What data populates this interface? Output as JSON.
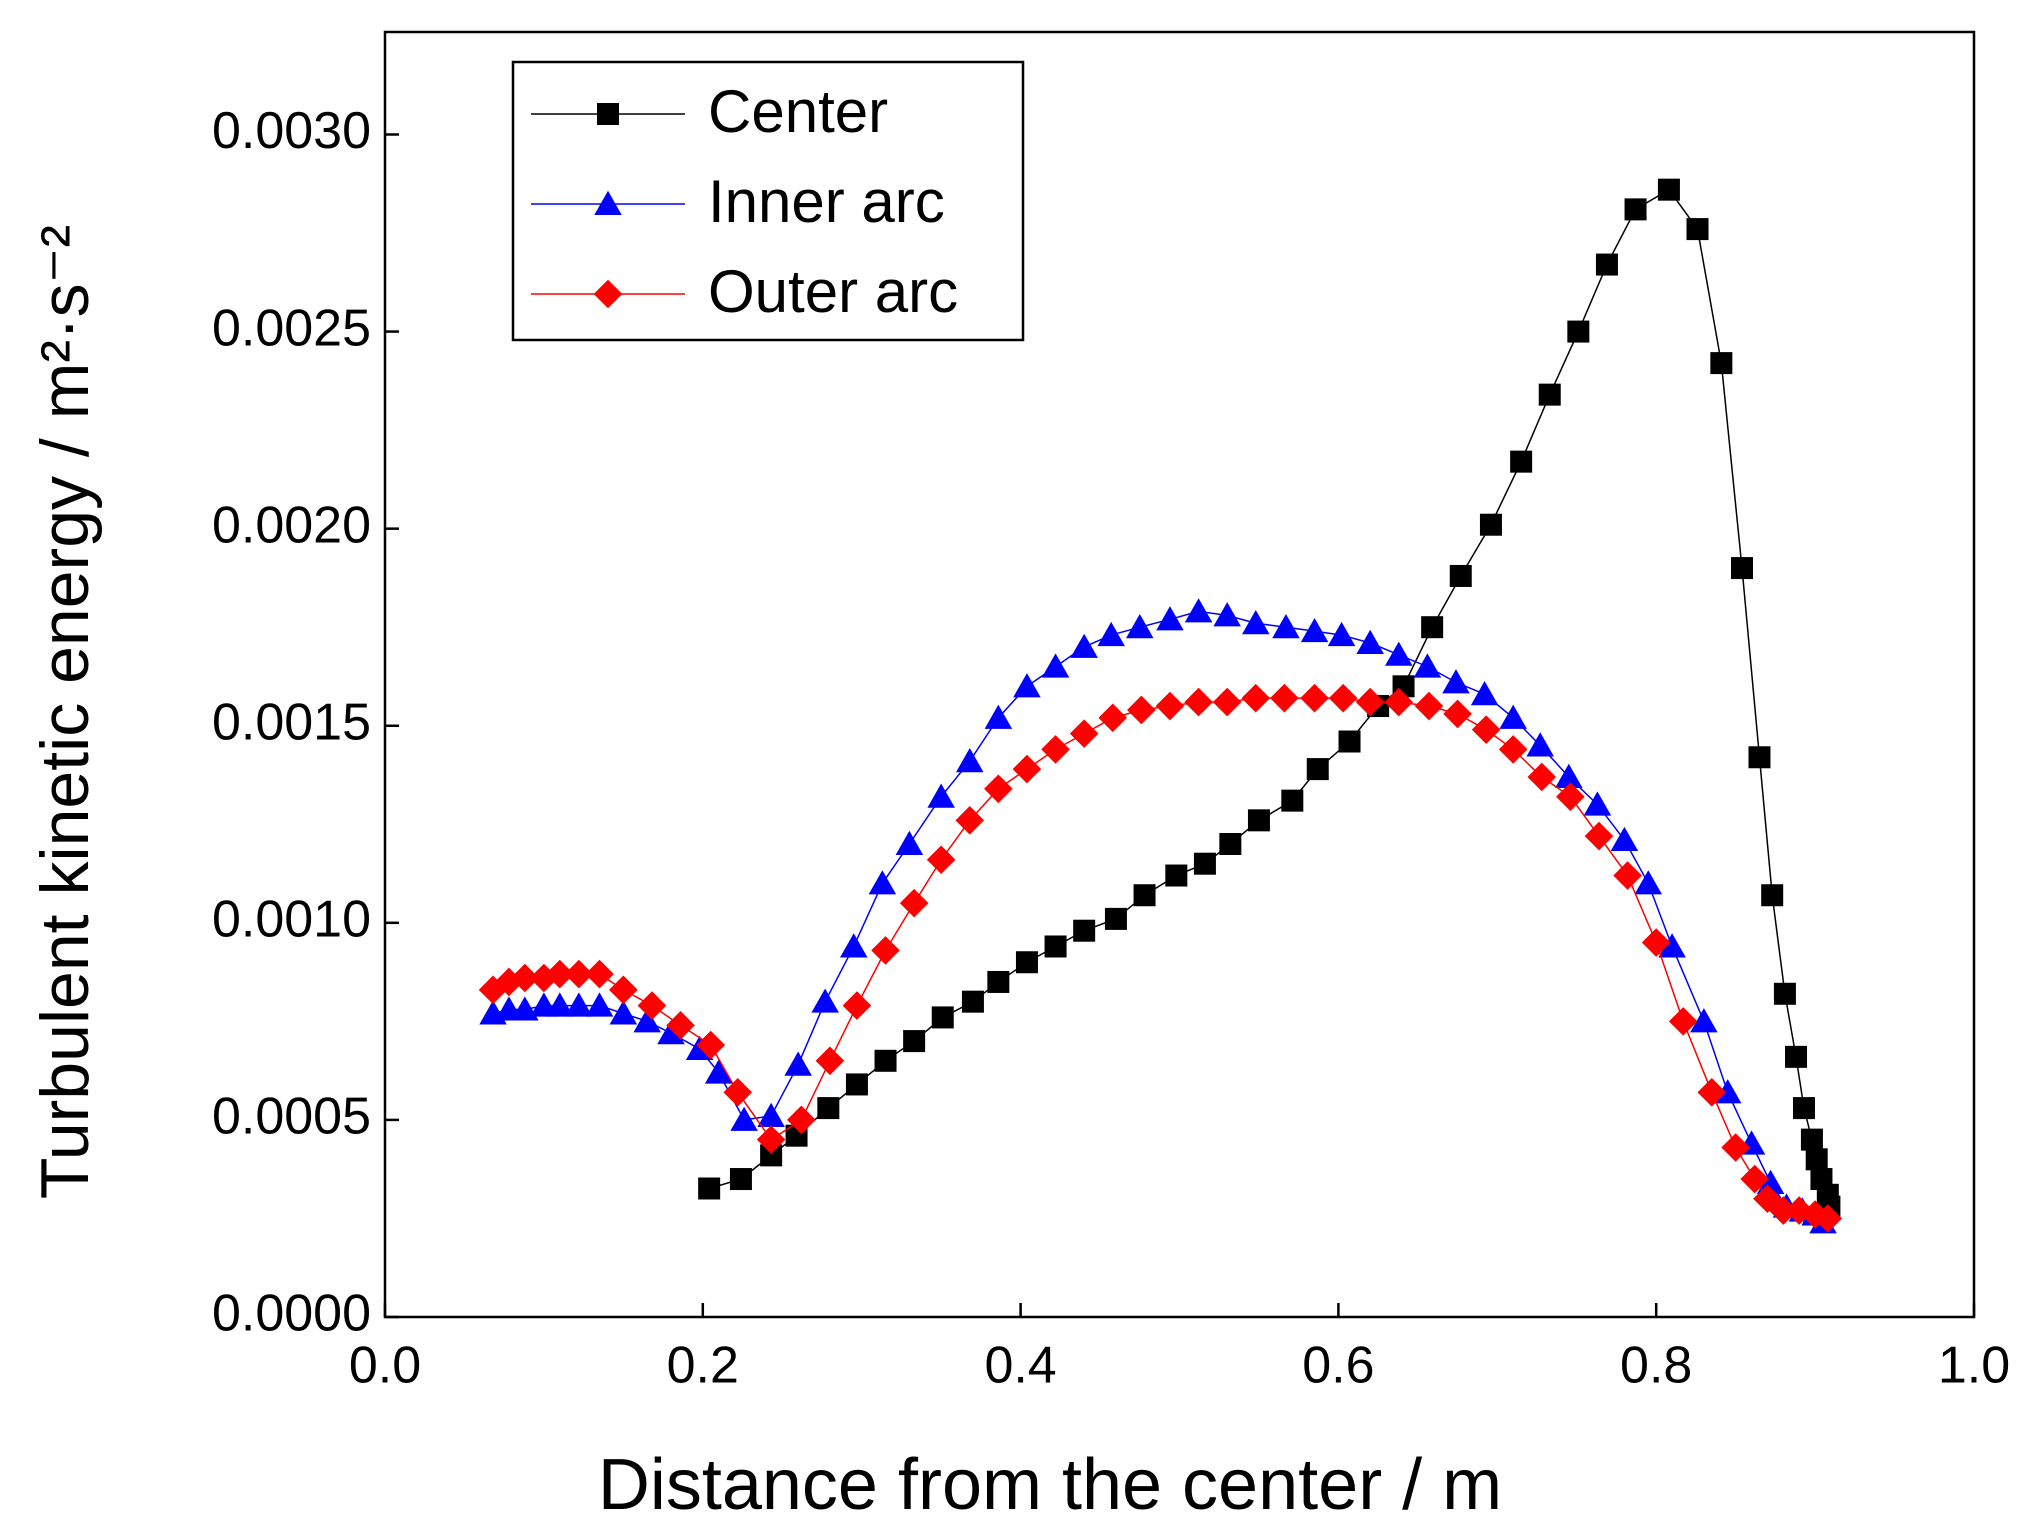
{
  "chart_data": {
    "type": "line",
    "xlabel": "Distance from the center / m",
    "ylabel": "Turbulent kinetic energy / m²·s⁻²",
    "xlim": [
      0,
      1
    ],
    "ylim": [
      0,
      0.00326
    ],
    "xticks": [
      {
        "value": 0,
        "label": "0.0"
      },
      {
        "value": 0.2,
        "label": "0.2"
      },
      {
        "value": 0.4,
        "label": "0.4"
      },
      {
        "value": 0.6,
        "label": "0.6"
      },
      {
        "value": 0.8,
        "label": "0.8"
      },
      {
        "value": 1,
        "label": "1.0"
      }
    ],
    "yticks": [
      {
        "value": 0,
        "label": "0.0000"
      },
      {
        "value": 0.0005,
        "label": "0.0005"
      },
      {
        "value": 0.001,
        "label": "0.0010"
      },
      {
        "value": 0.0015,
        "label": "0.0015"
      },
      {
        "value": 0.002,
        "label": "0.0020"
      },
      {
        "value": 0.0025,
        "label": "0.0025"
      },
      {
        "value": 0.003,
        "label": "0.0030"
      }
    ],
    "legend": "upper left",
    "series": [
      {
        "name": "Center",
        "color": "#000000",
        "marker": "square",
        "x": [
          0.204,
          0.224,
          0.243,
          0.259,
          0.279,
          0.297,
          0.315,
          0.333,
          0.351,
          0.37,
          0.386,
          0.404,
          0.422,
          0.44,
          0.46,
          0.478,
          0.498,
          0.516,
          0.532,
          0.55,
          0.571,
          0.587,
          0.607,
          0.625,
          0.641,
          0.659,
          0.677,
          0.696,
          0.715,
          0.733,
          0.751,
          0.769,
          0.787,
          0.808,
          0.826,
          0.841,
          0.854,
          0.865,
          0.873,
          0.881,
          0.888,
          0.893,
          0.898,
          0.901,
          0.904,
          0.908,
          0.909
        ],
        "values": [
          0.000326,
          0.00035,
          0.00041,
          0.00046,
          0.00053,
          0.00059,
          0.00065,
          0.0007,
          0.00076,
          0.0008,
          0.00085,
          0.0009,
          0.00094,
          0.00098,
          0.00101,
          0.00107,
          0.00112,
          0.00115,
          0.0012,
          0.00126,
          0.00131,
          0.00139,
          0.00146,
          0.00155,
          0.0016,
          0.00175,
          0.00188,
          0.00201,
          0.00217,
          0.00234,
          0.0025,
          0.00267,
          0.00281,
          0.00286,
          0.00276,
          0.00242,
          0.0019,
          0.00142,
          0.00107,
          0.00082,
          0.00066,
          0.00053,
          0.00045,
          0.0004,
          0.00035,
          0.00031,
          0.00028
        ]
      },
      {
        "name": "Inner arc",
        "color": "#0000ff",
        "marker": "triangle",
        "x": [
          0.068,
          0.078,
          0.088,
          0.1,
          0.11,
          0.122,
          0.135,
          0.15,
          0.165,
          0.18,
          0.198,
          0.21,
          0.226,
          0.243,
          0.26,
          0.277,
          0.295,
          0.313,
          0.33,
          0.35,
          0.368,
          0.386,
          0.404,
          0.422,
          0.44,
          0.457,
          0.475,
          0.494,
          0.512,
          0.53,
          0.548,
          0.567,
          0.585,
          0.602,
          0.62,
          0.638,
          0.656,
          0.674,
          0.692,
          0.71,
          0.727,
          0.745,
          0.763,
          0.78,
          0.795,
          0.81,
          0.83,
          0.845,
          0.86,
          0.872,
          0.882,
          0.892,
          0.9,
          0.905
        ],
        "values": [
          0.00077,
          0.00078,
          0.00078,
          0.00079,
          0.00079,
          0.00079,
          0.00079,
          0.00077,
          0.00075,
          0.00072,
          0.00068,
          0.00062,
          0.0005,
          0.00051,
          0.00064,
          0.0008,
          0.00094,
          0.0011,
          0.0012,
          0.00132,
          0.00141,
          0.00152,
          0.0016,
          0.00165,
          0.0017,
          0.00173,
          0.00175,
          0.00177,
          0.00179,
          0.00178,
          0.00176,
          0.00175,
          0.00174,
          0.00173,
          0.00171,
          0.00168,
          0.00165,
          0.00161,
          0.00158,
          0.00152,
          0.00145,
          0.00137,
          0.0013,
          0.00121,
          0.0011,
          0.00094,
          0.00075,
          0.00057,
          0.00044,
          0.00034,
          0.00028,
          0.00027,
          0.00026,
          0.00024
        ]
      },
      {
        "name": "Outer arc",
        "color": "#ff0000",
        "marker": "diamond",
        "x": [
          0.068,
          0.078,
          0.088,
          0.1,
          0.11,
          0.122,
          0.135,
          0.15,
          0.168,
          0.186,
          0.205,
          0.222,
          0.243,
          0.262,
          0.28,
          0.297,
          0.315,
          0.333,
          0.35,
          0.368,
          0.386,
          0.404,
          0.422,
          0.44,
          0.458,
          0.476,
          0.494,
          0.512,
          0.53,
          0.548,
          0.566,
          0.585,
          0.603,
          0.62,
          0.638,
          0.657,
          0.675,
          0.693,
          0.71,
          0.728,
          0.746,
          0.764,
          0.782,
          0.8,
          0.817,
          0.835,
          0.85,
          0.862,
          0.87,
          0.88,
          0.89,
          0.9,
          0.908
        ],
        "values": [
          0.00083,
          0.00085,
          0.00086,
          0.00086,
          0.00087,
          0.00087,
          0.00087,
          0.00083,
          0.00079,
          0.00074,
          0.00069,
          0.00057,
          0.00045,
          0.0005,
          0.00065,
          0.00079,
          0.00093,
          0.00105,
          0.00116,
          0.00126,
          0.00134,
          0.00139,
          0.00144,
          0.00148,
          0.00152,
          0.00154,
          0.00155,
          0.00156,
          0.00156,
          0.00157,
          0.00157,
          0.00157,
          0.00157,
          0.00156,
          0.00156,
          0.00155,
          0.00153,
          0.00149,
          0.00144,
          0.00137,
          0.00132,
          0.00122,
          0.00112,
          0.00095,
          0.00075,
          0.00057,
          0.00043,
          0.00035,
          0.0003,
          0.00027,
          0.00027,
          0.00026,
          0.00025
        ]
      }
    ]
  }
}
